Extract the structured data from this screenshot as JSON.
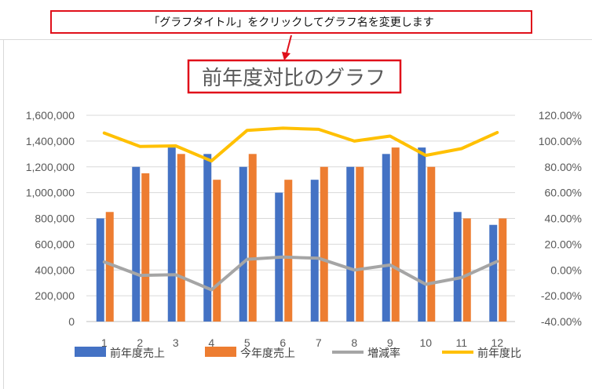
{
  "annotation": {
    "callout_text": "「グラフタイトル」をクリックしてグラフ名を変更します",
    "highlight_color": "#e0101a"
  },
  "chart_data": {
    "type": "bar",
    "title": "前年度対比のグラフ",
    "categories": [
      "1",
      "2",
      "3",
      "4",
      "5",
      "6",
      "7",
      "8",
      "9",
      "10",
      "11",
      "12"
    ],
    "series": [
      {
        "name": "前年度売上",
        "type": "bar",
        "axis": "left",
        "color": "#4472c4",
        "values": [
          800000,
          1200000,
          1350000,
          1300000,
          1200000,
          1000000,
          1100000,
          1200000,
          1300000,
          1350000,
          850000,
          750000
        ]
      },
      {
        "name": "今年度売上",
        "type": "bar",
        "axis": "left",
        "color": "#ed7d31",
        "values": [
          850000,
          1150000,
          1300000,
          1100000,
          1300000,
          1100000,
          1200000,
          1200000,
          1350000,
          1200000,
          800000,
          800000
        ]
      },
      {
        "name": "増減率",
        "type": "line",
        "axis": "right",
        "color": "#a5a5a5",
        "values": [
          0.0625,
          -0.0417,
          -0.037,
          -0.1538,
          0.0833,
          0.1,
          0.0909,
          0.0,
          0.0385,
          -0.1111,
          -0.0588,
          0.0667
        ]
      },
      {
        "name": "前年度比",
        "type": "line",
        "axis": "right",
        "color": "#ffc000",
        "values": [
          1.0625,
          0.9583,
          0.963,
          0.8462,
          1.0833,
          1.1,
          1.0909,
          1.0,
          1.0385,
          0.8889,
          0.9412,
          1.0667
        ]
      }
    ],
    "y_left": {
      "min": 0,
      "max": 1600000,
      "step": 200000,
      "tick_labels": [
        "0",
        "200,000",
        "400,000",
        "600,000",
        "800,000",
        "1,000,000",
        "1,200,000",
        "1,400,000",
        "1,600,000"
      ]
    },
    "y_right": {
      "min": -0.4,
      "max": 1.2,
      "step": 0.2,
      "tick_labels": [
        "-40.00%",
        "-20.00%",
        "0.00%",
        "20.00%",
        "40.00%",
        "60.00%",
        "80.00%",
        "100.00%",
        "120.00%"
      ]
    },
    "grid": true,
    "legend_position": "bottom"
  }
}
